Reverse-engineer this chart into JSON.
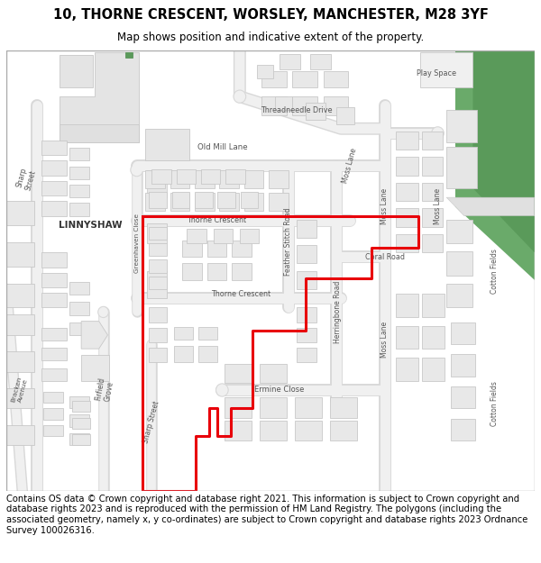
{
  "title": "10, THORNE CRESCENT, WORSLEY, MANCHESTER, M28 3YF",
  "subtitle": "Map shows position and indicative extent of the property.",
  "footer": "Contains OS data © Crown copyright and database right 2021. This information is subject to Crown copyright and database rights 2023 and is reproduced with the permission of HM Land Registry. The polygons (including the associated geometry, namely x, y co-ordinates) are subject to Crown copyright and database rights 2023 Ordnance Survey 100026316.",
  "bg_color": "#ffffff",
  "map_bg": "#ffffff",
  "building_color": "#e8e8e8",
  "building_edge": "#c8c8c8",
  "green_color": "#6aaa6a",
  "green_light": "#8aba8a",
  "red_line": "#e8000a",
  "road_fill": "#f2f2f2",
  "title_fontsize": 10.5,
  "subtitle_fontsize": 8.5,
  "footer_fontsize": 7.2,
  "label_fontsize": 6.0,
  "label_color": "#555555"
}
